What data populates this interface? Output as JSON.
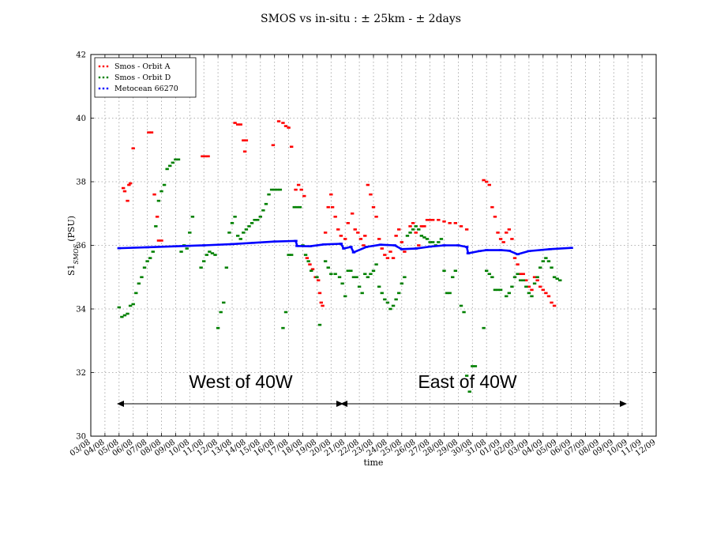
{
  "chart_data": {
    "type": "scatter",
    "title": "SMOS vs in-situ : ± 25km - ± 2days",
    "xlabel": "time",
    "ylabel_main": "S1",
    "ylabel_sub": "SMOS",
    "ylabel_unit": "(PSU)",
    "ylim": [
      30,
      42
    ],
    "yticks": [
      30,
      32,
      34,
      36,
      38,
      40,
      42
    ],
    "xlim_day": [
      0,
      40
    ],
    "xticks": [
      "03/08",
      "04/08",
      "05/08",
      "06/08",
      "07/08",
      "08/08",
      "09/08",
      "10/08",
      "11/08",
      "12/08",
      "13/08",
      "14/08",
      "15/08",
      "16/08",
      "17/08",
      "18/08",
      "19/08",
      "20/08",
      "21/08",
      "22/08",
      "23/08",
      "24/08",
      "25/08",
      "26/08",
      "27/08",
      "28/08",
      "29/08",
      "30/08",
      "31/08",
      "01/09",
      "02/09",
      "03/09",
      "04/09",
      "05/09",
      "06/09",
      "07/09",
      "08/09",
      "09/09",
      "10/09",
      "11/09",
      "12/09"
    ],
    "grid": true,
    "legend_position": "top-left",
    "series": [
      {
        "name": "Smos - Orbit A",
        "color": "#ff0000",
        "points": [
          [
            2.3,
            37.8
          ],
          [
            2.4,
            37.7
          ],
          [
            2.6,
            37.4
          ],
          [
            2.7,
            37.9
          ],
          [
            2.8,
            37.95
          ],
          [
            3.0,
            39.05
          ],
          [
            4.1,
            39.55
          ],
          [
            4.3,
            39.55
          ],
          [
            4.5,
            37.6
          ],
          [
            4.7,
            36.9
          ],
          [
            4.8,
            36.15
          ],
          [
            5.0,
            36.15
          ],
          [
            7.9,
            38.8
          ],
          [
            8.1,
            38.8
          ],
          [
            8.3,
            38.8
          ],
          [
            10.2,
            39.85
          ],
          [
            10.4,
            39.8
          ],
          [
            10.6,
            39.8
          ],
          [
            10.8,
            39.3
          ],
          [
            10.9,
            38.95
          ],
          [
            11.0,
            39.3
          ],
          [
            12.9,
            39.15
          ],
          [
            13.3,
            39.9
          ],
          [
            13.6,
            39.85
          ],
          [
            13.8,
            39.75
          ],
          [
            14.0,
            39.7
          ],
          [
            14.2,
            39.1
          ],
          [
            14.5,
            37.75
          ],
          [
            14.7,
            37.9
          ],
          [
            14.9,
            37.75
          ],
          [
            15.1,
            37.55
          ],
          [
            15.3,
            35.6
          ],
          [
            15.5,
            35.4
          ],
          [
            15.7,
            35.25
          ],
          [
            15.9,
            35.0
          ],
          [
            16.1,
            34.9
          ],
          [
            16.2,
            34.5
          ],
          [
            16.3,
            34.2
          ],
          [
            16.4,
            34.1
          ],
          [
            16.6,
            36.4
          ],
          [
            16.8,
            37.2
          ],
          [
            17.0,
            37.6
          ],
          [
            17.1,
            37.2
          ],
          [
            17.3,
            36.9
          ],
          [
            17.5,
            36.5
          ],
          [
            17.7,
            36.3
          ],
          [
            18.0,
            36.2
          ],
          [
            18.2,
            36.7
          ],
          [
            18.5,
            37.0
          ],
          [
            18.7,
            36.5
          ],
          [
            18.9,
            36.4
          ],
          [
            19.1,
            36.2
          ],
          [
            19.3,
            36.0
          ],
          [
            19.4,
            36.3
          ],
          [
            19.6,
            37.9
          ],
          [
            19.8,
            37.6
          ],
          [
            20.0,
            37.2
          ],
          [
            20.2,
            36.9
          ],
          [
            20.4,
            36.2
          ],
          [
            20.6,
            35.9
          ],
          [
            20.8,
            35.7
          ],
          [
            21.0,
            35.6
          ],
          [
            21.2,
            35.8
          ],
          [
            21.4,
            35.6
          ],
          [
            21.6,
            36.3
          ],
          [
            21.8,
            36.5
          ],
          [
            22.0,
            36.1
          ],
          [
            22.2,
            35.8
          ],
          [
            22.6,
            36.6
          ],
          [
            22.8,
            36.7
          ],
          [
            23.0,
            36.4
          ],
          [
            23.2,
            36.0
          ],
          [
            23.4,
            36.6
          ],
          [
            23.6,
            36.6
          ],
          [
            23.8,
            36.8
          ],
          [
            24.0,
            36.8
          ],
          [
            24.2,
            36.8
          ],
          [
            24.6,
            36.8
          ],
          [
            25.0,
            36.75
          ],
          [
            25.4,
            36.7
          ],
          [
            25.8,
            36.7
          ],
          [
            26.2,
            36.6
          ],
          [
            26.6,
            36.5
          ],
          [
            27.8,
            38.05
          ],
          [
            28.0,
            38.0
          ],
          [
            28.2,
            37.9
          ],
          [
            28.4,
            37.2
          ],
          [
            28.6,
            36.9
          ],
          [
            28.8,
            36.4
          ],
          [
            29.0,
            36.2
          ],
          [
            29.2,
            36.1
          ],
          [
            29.4,
            36.4
          ],
          [
            29.6,
            36.5
          ],
          [
            29.8,
            36.2
          ],
          [
            30.0,
            35.6
          ],
          [
            30.2,
            35.4
          ],
          [
            30.4,
            35.1
          ],
          [
            30.6,
            35.1
          ],
          [
            30.8,
            34.9
          ],
          [
            31.0,
            34.7
          ],
          [
            31.2,
            34.6
          ],
          [
            31.4,
            35.0
          ],
          [
            31.6,
            34.9
          ],
          [
            31.8,
            34.7
          ],
          [
            32.0,
            34.6
          ],
          [
            32.2,
            34.5
          ],
          [
            32.4,
            34.4
          ],
          [
            32.6,
            34.2
          ],
          [
            32.8,
            34.1
          ]
        ]
      },
      {
        "name": "Smos - Orbit D",
        "color": "#008000",
        "points": [
          [
            2.0,
            34.05
          ],
          [
            2.2,
            33.75
          ],
          [
            2.4,
            33.8
          ],
          [
            2.6,
            33.85
          ],
          [
            2.8,
            34.1
          ],
          [
            3.0,
            34.15
          ],
          [
            3.2,
            34.5
          ],
          [
            3.4,
            34.8
          ],
          [
            3.6,
            35.0
          ],
          [
            3.8,
            35.3
          ],
          [
            4.0,
            35.5
          ],
          [
            4.2,
            35.6
          ],
          [
            4.4,
            35.8
          ],
          [
            4.6,
            36.6
          ],
          [
            4.8,
            37.4
          ],
          [
            5.0,
            37.7
          ],
          [
            5.2,
            37.9
          ],
          [
            5.4,
            38.4
          ],
          [
            5.6,
            38.5
          ],
          [
            5.8,
            38.6
          ],
          [
            6.0,
            38.7
          ],
          [
            6.2,
            38.7
          ],
          [
            6.4,
            35.8
          ],
          [
            6.6,
            36.0
          ],
          [
            6.8,
            35.9
          ],
          [
            7.0,
            36.4
          ],
          [
            7.2,
            36.9
          ],
          [
            7.8,
            35.3
          ],
          [
            8.0,
            35.5
          ],
          [
            8.2,
            35.7
          ],
          [
            8.4,
            35.8
          ],
          [
            8.6,
            35.75
          ],
          [
            8.8,
            35.7
          ],
          [
            9.0,
            33.4
          ],
          [
            9.2,
            33.9
          ],
          [
            9.4,
            34.2
          ],
          [
            9.6,
            35.3
          ],
          [
            9.8,
            36.4
          ],
          [
            10.0,
            36.7
          ],
          [
            10.2,
            36.9
          ],
          [
            10.4,
            36.3
          ],
          [
            10.6,
            36.2
          ],
          [
            10.8,
            36.4
          ],
          [
            11.0,
            36.5
          ],
          [
            11.2,
            36.6
          ],
          [
            11.4,
            36.7
          ],
          [
            11.6,
            36.8
          ],
          [
            11.8,
            36.8
          ],
          [
            12.0,
            36.9
          ],
          [
            12.2,
            37.1
          ],
          [
            12.4,
            37.3
          ],
          [
            12.6,
            37.6
          ],
          [
            12.8,
            37.75
          ],
          [
            13.0,
            37.75
          ],
          [
            13.2,
            37.75
          ],
          [
            13.4,
            37.75
          ],
          [
            13.6,
            33.4
          ],
          [
            13.8,
            33.9
          ],
          [
            14.0,
            35.7
          ],
          [
            14.2,
            35.7
          ],
          [
            14.4,
            37.2
          ],
          [
            14.6,
            37.2
          ],
          [
            14.8,
            37.2
          ],
          [
            15.0,
            36.0
          ],
          [
            15.2,
            35.7
          ],
          [
            15.4,
            35.5
          ],
          [
            15.6,
            35.2
          ],
          [
            16.0,
            35.0
          ],
          [
            16.2,
            33.5
          ],
          [
            16.6,
            35.5
          ],
          [
            16.8,
            35.3
          ],
          [
            17.0,
            35.1
          ],
          [
            17.3,
            35.1
          ],
          [
            17.6,
            35.0
          ],
          [
            17.8,
            34.8
          ],
          [
            18.0,
            34.4
          ],
          [
            18.2,
            35.2
          ],
          [
            18.4,
            35.2
          ],
          [
            18.6,
            35.0
          ],
          [
            18.8,
            35.0
          ],
          [
            19.0,
            34.7
          ],
          [
            19.2,
            34.5
          ],
          [
            19.4,
            35.1
          ],
          [
            19.6,
            35.0
          ],
          [
            19.8,
            35.1
          ],
          [
            20.0,
            35.2
          ],
          [
            20.2,
            35.4
          ],
          [
            20.4,
            34.7
          ],
          [
            20.6,
            34.5
          ],
          [
            20.8,
            34.3
          ],
          [
            21.0,
            34.2
          ],
          [
            21.2,
            34.0
          ],
          [
            21.4,
            34.1
          ],
          [
            21.6,
            34.3
          ],
          [
            21.8,
            34.5
          ],
          [
            22.0,
            34.8
          ],
          [
            22.2,
            35.0
          ],
          [
            22.4,
            36.3
          ],
          [
            22.6,
            36.4
          ],
          [
            22.8,
            36.5
          ],
          [
            23.0,
            36.6
          ],
          [
            23.2,
            36.5
          ],
          [
            23.4,
            36.3
          ],
          [
            23.6,
            36.25
          ],
          [
            23.8,
            36.2
          ],
          [
            24.0,
            36.1
          ],
          [
            24.2,
            36.1
          ],
          [
            24.4,
            36.0
          ],
          [
            24.6,
            36.1
          ],
          [
            24.8,
            36.2
          ],
          [
            25.0,
            35.2
          ],
          [
            25.2,
            34.5
          ],
          [
            25.4,
            34.5
          ],
          [
            25.6,
            35.0
          ],
          [
            25.8,
            35.2
          ],
          [
            26.2,
            34.1
          ],
          [
            26.4,
            33.9
          ],
          [
            26.6,
            31.9
          ],
          [
            26.8,
            31.4
          ],
          [
            27.0,
            32.2
          ],
          [
            27.2,
            32.2
          ],
          [
            27.8,
            33.4
          ],
          [
            28.0,
            35.2
          ],
          [
            28.2,
            35.1
          ],
          [
            28.4,
            35.0
          ],
          [
            28.6,
            34.6
          ],
          [
            28.8,
            34.6
          ],
          [
            29.0,
            34.6
          ],
          [
            29.4,
            34.4
          ],
          [
            29.6,
            34.5
          ],
          [
            29.8,
            34.7
          ],
          [
            30.0,
            35.0
          ],
          [
            30.2,
            35.1
          ],
          [
            30.4,
            34.9
          ],
          [
            30.6,
            34.9
          ],
          [
            30.8,
            34.7
          ],
          [
            31.0,
            34.5
          ],
          [
            31.2,
            34.4
          ],
          [
            31.4,
            34.8
          ],
          [
            31.6,
            35.0
          ],
          [
            31.8,
            35.3
          ],
          [
            32.0,
            35.5
          ],
          [
            32.2,
            35.6
          ],
          [
            32.4,
            35.5
          ],
          [
            32.6,
            35.3
          ],
          [
            32.8,
            35.0
          ],
          [
            33.0,
            34.95
          ],
          [
            33.2,
            34.9
          ]
        ]
      },
      {
        "name": "Metocean 66270",
        "color": "#0000ff",
        "points": [
          [
            2.0,
            35.91
          ],
          [
            4.0,
            35.94
          ],
          [
            6.0,
            35.97
          ],
          [
            8.0,
            36.0
          ],
          [
            10.0,
            36.04
          ],
          [
            11.5,
            36.08
          ],
          [
            13.0,
            36.12
          ],
          [
            14.5,
            36.14
          ],
          [
            14.6,
            35.98
          ],
          [
            15.5,
            35.97
          ],
          [
            16.5,
            36.03
          ],
          [
            17.7,
            36.05
          ],
          [
            17.9,
            35.9
          ],
          [
            18.4,
            35.95
          ],
          [
            18.6,
            35.78
          ],
          [
            19.5,
            35.95
          ],
          [
            20.5,
            36.02
          ],
          [
            21.5,
            36.0
          ],
          [
            22.0,
            35.88
          ],
          [
            23.0,
            35.9
          ],
          [
            24.0,
            35.96
          ],
          [
            25.0,
            36.0
          ],
          [
            26.0,
            36.0
          ],
          [
            26.6,
            35.95
          ],
          [
            26.7,
            35.75
          ],
          [
            27.5,
            35.82
          ],
          [
            28.0,
            35.85
          ],
          [
            29.0,
            35.85
          ],
          [
            29.6,
            35.83
          ],
          [
            30.2,
            35.72
          ],
          [
            31.0,
            35.82
          ],
          [
            32.5,
            35.88
          ],
          [
            34.0,
            35.92
          ]
        ]
      }
    ]
  },
  "annotations": {
    "west_label": "West of 40W",
    "east_label": "East of 40W"
  }
}
